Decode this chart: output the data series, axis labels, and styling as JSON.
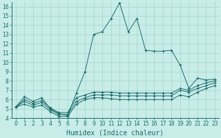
{
  "title": "",
  "xlabel": "Humidex (Indice chaleur)",
  "bg_color": "#c8ece8",
  "line_color": "#1a6b6b",
  "grid_color": "#a8d8d0",
  "x_values": [
    0,
    1,
    2,
    3,
    4,
    5,
    6,
    7,
    8,
    9,
    10,
    11,
    12,
    13,
    14,
    15,
    16,
    17,
    18,
    19,
    20,
    21,
    22,
    23
  ],
  "series": [
    [
      5.2,
      6.3,
      5.8,
      6.2,
      5.0,
      4.5,
      4.3,
      6.7,
      9.0,
      13.0,
      13.3,
      14.7,
      16.4,
      13.3,
      14.7,
      11.3,
      11.2,
      11.2,
      11.3,
      9.7,
      7.2,
      8.3,
      8.1,
      8.2
    ],
    [
      5.2,
      6.0,
      5.6,
      5.9,
      5.1,
      4.6,
      4.6,
      6.2,
      6.5,
      6.8,
      6.8,
      6.8,
      6.7,
      6.7,
      6.7,
      6.7,
      6.7,
      6.7,
      6.7,
      7.2,
      7.0,
      7.5,
      7.8,
      8.0
    ],
    [
      5.2,
      5.8,
      5.4,
      5.7,
      4.9,
      4.4,
      4.4,
      5.8,
      6.2,
      6.5,
      6.5,
      6.5,
      6.4,
      6.4,
      6.4,
      6.4,
      6.4,
      6.4,
      6.4,
      7.0,
      6.8,
      7.2,
      7.5,
      7.8
    ],
    [
      5.2,
      5.5,
      5.2,
      5.4,
      4.7,
      4.2,
      4.2,
      5.5,
      6.0,
      6.2,
      6.2,
      6.1,
      6.0,
      6.0,
      6.0,
      6.0,
      6.0,
      6.0,
      6.0,
      6.5,
      6.3,
      6.8,
      7.2,
      7.5
    ]
  ],
  "ylim": [
    4,
    16.5
  ],
  "xlim": [
    -0.5,
    23.5
  ],
  "yticks": [
    4,
    5,
    6,
    7,
    8,
    9,
    10,
    11,
    12,
    13,
    14,
    15,
    16
  ],
  "xticks": [
    0,
    1,
    2,
    3,
    4,
    5,
    6,
    7,
    8,
    9,
    10,
    11,
    12,
    13,
    14,
    15,
    16,
    17,
    18,
    19,
    20,
    21,
    22,
    23
  ],
  "xlabel_fontsize": 7,
  "tick_fontsize": 5.5
}
